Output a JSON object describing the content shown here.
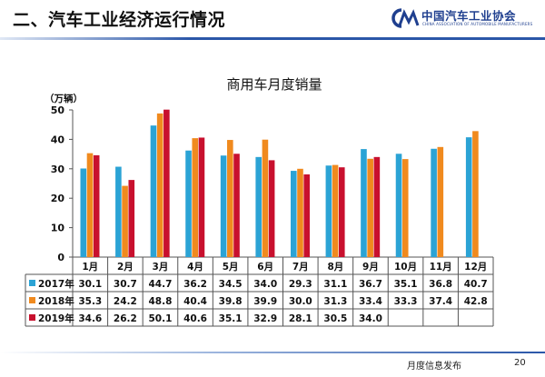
{
  "header": {
    "title": "二、汽车工业经济运行情况",
    "logo_text": "中国汽车工业协会",
    "logo_subtext": "CHINA ASSOCIATION OF AUTOMOBILE MANUFACTURERS",
    "logo_icon": "caam-logo-icon"
  },
  "footer": {
    "text": "月度信息发布",
    "page": "20"
  },
  "chart_data": {
    "type": "bar",
    "title": "商用车月度销量",
    "ylabel": "（万辆）",
    "xlabel": "",
    "ylim": [
      0,
      50
    ],
    "yticks": [
      0,
      10,
      20,
      30,
      40,
      50
    ],
    "grid": false,
    "legend": "in-table-left",
    "categories": [
      "1月",
      "2月",
      "3月",
      "4月",
      "5月",
      "6月",
      "7月",
      "8月",
      "9月",
      "10月",
      "11月",
      "12月"
    ],
    "series": [
      {
        "name": "2017年",
        "color": "#2ba3d5",
        "values": [
          30.1,
          30.7,
          44.7,
          36.2,
          34.5,
          34.0,
          29.3,
          31.1,
          36.7,
          35.1,
          36.8,
          40.7
        ]
      },
      {
        "name": "2018年",
        "color": "#f08a1e",
        "values": [
          35.3,
          24.2,
          48.8,
          40.4,
          39.8,
          39.9,
          30.0,
          31.3,
          33.4,
          33.3,
          37.4,
          42.8
        ]
      },
      {
        "name": "2019年",
        "color": "#c8102e",
        "values": [
          34.6,
          26.2,
          50.1,
          40.6,
          35.1,
          32.9,
          28.1,
          30.5,
          34.0,
          null,
          null,
          null
        ]
      }
    ],
    "table": {
      "rows": [
        [
          "30.1",
          "30.7",
          "44.7",
          "36.2",
          "34.5",
          "34.0",
          "29.3",
          "31.1",
          "36.7",
          "35.1",
          "36.8",
          "40.7"
        ],
        [
          "35.3",
          "24.2",
          "48.8",
          "40.4",
          "39.8",
          "39.9",
          "30.0",
          "31.3",
          "33.4",
          "33.3",
          "37.4",
          "42.8"
        ],
        [
          "34.6",
          "26.2",
          "50.1",
          "40.6",
          "35.1",
          "32.9",
          "28.1",
          "30.5",
          "34.0",
          "",
          "",
          ""
        ]
      ]
    }
  }
}
